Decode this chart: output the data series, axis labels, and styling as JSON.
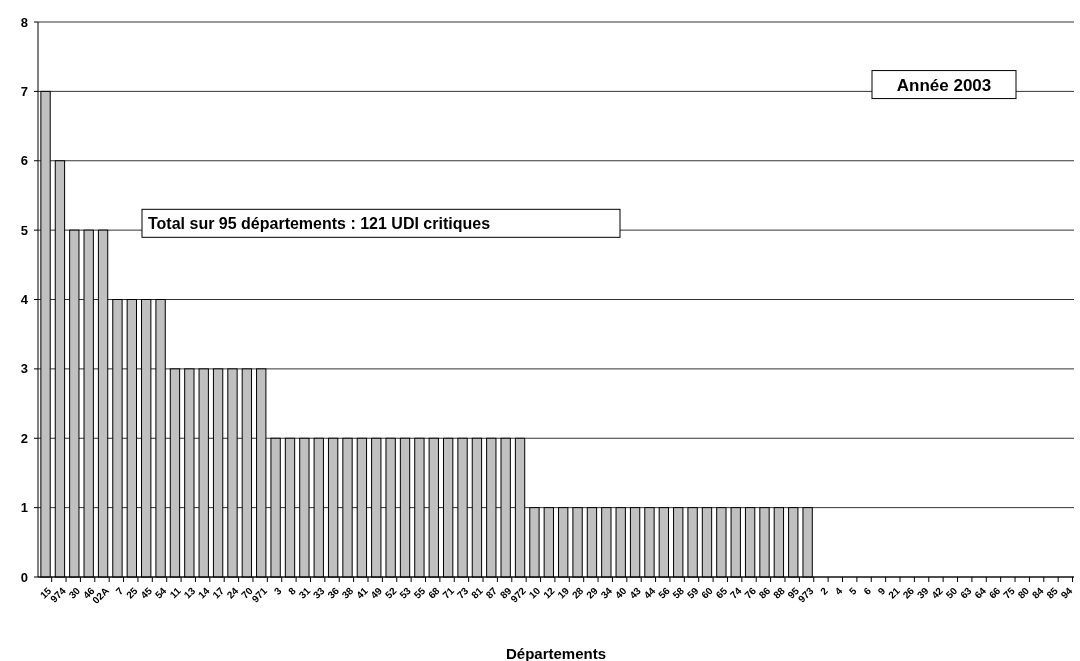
{
  "chart_data": {
    "type": "bar",
    "xlabel": "Départements",
    "categories": [
      "15",
      "974",
      "30",
      "46",
      "02A",
      "7",
      "25",
      "45",
      "54",
      "11",
      "13",
      "14",
      "17",
      "24",
      "70",
      "971",
      "3",
      "8",
      "31",
      "33",
      "36",
      "38",
      "41",
      "49",
      "52",
      "53",
      "55",
      "68",
      "71",
      "73",
      "81",
      "87",
      "89",
      "972",
      "10",
      "12",
      "19",
      "28",
      "29",
      "34",
      "40",
      "43",
      "44",
      "56",
      "58",
      "59",
      "60",
      "65",
      "74",
      "76",
      "86",
      "88",
      "95",
      "973",
      "2",
      "4",
      "5",
      "6",
      "9",
      "21",
      "26",
      "39",
      "42",
      "50",
      "63",
      "64",
      "66",
      "75",
      "80",
      "84",
      "85",
      "94"
    ],
    "values": [
      7,
      6,
      5,
      5,
      5,
      4,
      4,
      4,
      4,
      3,
      3,
      3,
      3,
      3,
      3,
      3,
      2,
      2,
      2,
      2,
      2,
      2,
      2,
      2,
      2,
      2,
      2,
      2,
      2,
      2,
      2,
      2,
      2,
      2,
      1,
      1,
      1,
      1,
      1,
      1,
      1,
      1,
      1,
      1,
      1,
      1,
      1,
      1,
      1,
      1,
      1,
      1,
      1,
      1,
      0,
      0,
      0,
      0,
      0,
      0,
      0,
      0,
      0,
      0,
      0,
      0,
      0,
      0,
      0,
      0,
      0,
      0
    ],
    "color": "#c0c0c0",
    "ylim": [
      0,
      8
    ],
    "yticks": [
      0,
      1,
      2,
      3,
      4,
      5,
      6,
      7,
      8
    ],
    "grid": "y",
    "annotations": [
      "Année 2003",
      "Total sur 95 départements : 121 UDI critiques"
    ]
  }
}
